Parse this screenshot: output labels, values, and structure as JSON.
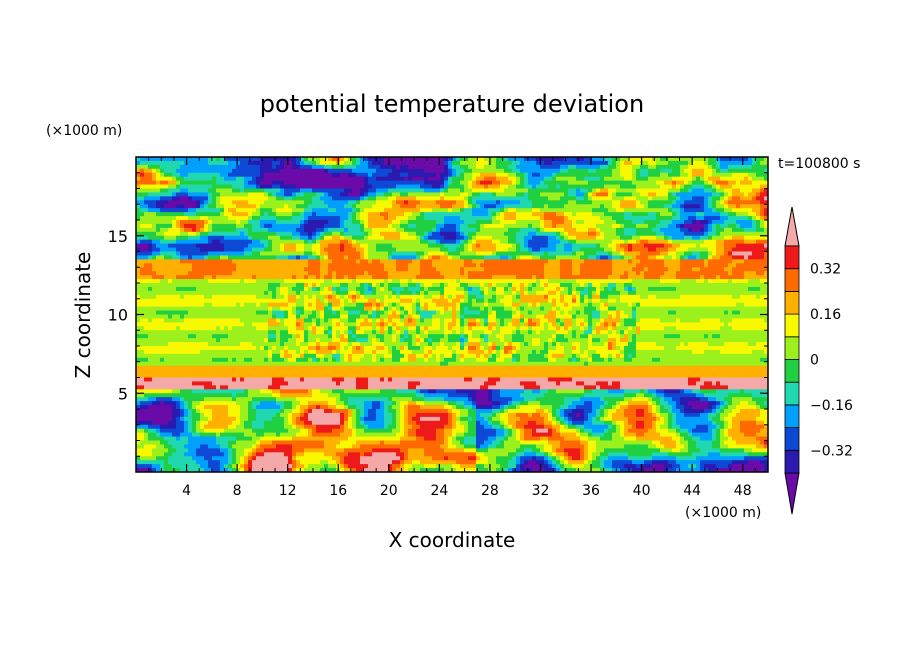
{
  "chart_data": {
    "type": "heatmap",
    "title": "potential temperature deviation",
    "xlabel": "X coordinate",
    "ylabel": "Z coordinate",
    "x_unit": "(×1000 m)",
    "y_unit": "(×1000 m)",
    "time_label": "t=100800 s",
    "xlim": [
      0,
      50
    ],
    "ylim": [
      0,
      20
    ],
    "x_ticks": [
      4,
      8,
      12,
      16,
      20,
      24,
      28,
      32,
      36,
      40,
      44,
      48
    ],
    "y_ticks": [
      5,
      10,
      15
    ],
    "colorbar": {
      "levels": [
        -0.4,
        -0.32,
        -0.24,
        -0.16,
        -0.08,
        0,
        0.08,
        0.16,
        0.24,
        0.32,
        0.4
      ],
      "tick_labels": [
        "0.32",
        "0.16",
        "0",
        "−0.16",
        "−0.32"
      ],
      "tick_values": [
        0.32,
        0.16,
        0,
        -0.16,
        -0.32
      ],
      "colors": [
        "#6a0aa8",
        "#2a1ab0",
        "#0e49d6",
        "#00a0ff",
        "#20d8b0",
        "#20d040",
        "#9cf01c",
        "#f8f800",
        "#ffb000",
        "#ff6a00",
        "#ee1a1a",
        "#f4a8a8"
      ],
      "extend": "both"
    },
    "bands": [
      {
        "z": [
          0,
          6
        ],
        "description_values": "mixed -0.4 to 0.4"
      },
      {
        "z": [
          6,
          13.5
        ],
        "description_values": "near 0 to 0.16"
      },
      {
        "z": [
          13.5,
          20
        ],
        "description_values": "mixed -0.4 to 0.4"
      }
    ]
  }
}
